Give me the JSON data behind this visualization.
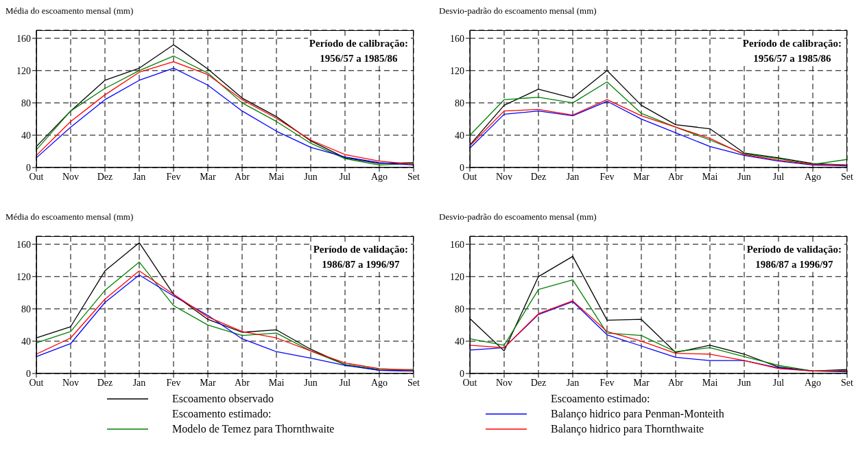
{
  "chart_data": [
    {
      "type": "line",
      "title": "Média do escoamento mensal (mm)",
      "categories": [
        "Out",
        "Nov",
        "Dez",
        "Jan",
        "Fev",
        "Mar",
        "Abr",
        "Mai",
        "Jun",
        "Jul",
        "Ago",
        "Set"
      ],
      "ylim": [
        0,
        170
      ],
      "yticks": [
        0,
        40,
        80,
        120,
        160
      ],
      "grid": true,
      "annotations": [
        "Período de calibração:\n1956/57 a 1985/86"
      ],
      "legend": "bottom",
      "legend_title": "Escoamento estimado:",
      "series": [
        {
          "name": "Escoamento observado",
          "color": "#000000",
          "values": [
            26,
            70,
            108,
            123,
            152,
            122,
            86,
            63,
            33,
            12,
            5,
            6
          ]
        },
        {
          "name": "Modelo de Temez para Thornthwaite",
          "color": "#008000",
          "values": [
            22,
            70,
            98,
            120,
            138,
            117,
            80,
            57,
            30,
            11,
            3,
            5
          ]
        },
        {
          "name": "Balanço hidrico para Penman-Monteith",
          "color": "#0000ff",
          "values": [
            12,
            50,
            84,
            108,
            123,
            102,
            70,
            45,
            25,
            13,
            6,
            3
          ]
        },
        {
          "name": "Balanço hidrico para Thornthwaite",
          "color": "#ff0000",
          "values": [
            15,
            57,
            90,
            118,
            131,
            115,
            84,
            61,
            34,
            16,
            8,
            4
          ]
        }
      ]
    },
    {
      "type": "line",
      "title": "Desvio-padrão do escoamento mensal (mm)",
      "categories": [
        "Out",
        "Nov",
        "Dez",
        "Jan",
        "Fev",
        "Mar",
        "Abr",
        "Mai",
        "Jun",
        "Jul",
        "Ago",
        "Set"
      ],
      "ylim": [
        0,
        170
      ],
      "yticks": [
        0,
        40,
        80,
        120,
        160
      ],
      "grid": true,
      "annotations": [
        "Período de calibração:\n1956/57 a 1985/86"
      ],
      "series": [
        {
          "color": "#000000",
          "values": [
            28,
            77,
            97,
            86,
            120,
            77,
            53,
            48,
            18,
            12,
            5,
            3
          ]
        },
        {
          "color": "#008000",
          "values": [
            40,
            84,
            87,
            80,
            106,
            67,
            50,
            34,
            17,
            11,
            4,
            10
          ]
        },
        {
          "color": "#0000ff",
          "values": [
            24,
            66,
            70,
            64,
            82,
            60,
            43,
            26,
            15,
            8,
            3,
            2
          ]
        },
        {
          "color": "#ff0000",
          "values": [
            27,
            70,
            72,
            65,
            84,
            64,
            50,
            36,
            16,
            9,
            4,
            3
          ]
        }
      ]
    },
    {
      "type": "line",
      "title": "Média do escoamento mensal (mm)",
      "categories": [
        "Out",
        "Nov",
        "Dez",
        "Jan",
        "Fev",
        "Mar",
        "Abr",
        "Mai",
        "Jun",
        "Jul",
        "Ago",
        "Set"
      ],
      "ylim": [
        0,
        170
      ],
      "yticks": [
        0,
        40,
        80,
        120,
        160
      ],
      "grid": true,
      "annotations": [
        "Período de validação:\n1986/87 a 1996/97"
      ],
      "series": [
        {
          "color": "#000000",
          "values": [
            44,
            58,
            127,
            162,
            98,
            67,
            51,
            54,
            30,
            11,
            4,
            3
          ]
        },
        {
          "color": "#008000",
          "values": [
            38,
            52,
            103,
            138,
            84,
            60,
            47,
            50,
            28,
            11,
            5,
            5
          ]
        },
        {
          "color": "#0000ff",
          "values": [
            21,
            37,
            88,
            122,
            96,
            72,
            43,
            27,
            19,
            10,
            4,
            3
          ]
        },
        {
          "color": "#ff0000",
          "values": [
            24,
            44,
            92,
            127,
            98,
            70,
            52,
            44,
            28,
            13,
            6,
            4
          ]
        }
      ]
    },
    {
      "type": "line",
      "title": "Desvio-padrão do escoamento mensal (mm)",
      "categories": [
        "Out",
        "Nov",
        "Dez",
        "Jan",
        "Fev",
        "Mar",
        "Abr",
        "Mai",
        "Jun",
        "Jul",
        "Ago",
        "Set"
      ],
      "ylim": [
        0,
        170
      ],
      "yticks": [
        0,
        40,
        80,
        120,
        160
      ],
      "grid": true,
      "annotations": [
        "Período de validação:\n1986/87 a 1996/97"
      ],
      "series": [
        {
          "color": "#000000",
          "values": [
            68,
            28,
            120,
            145,
            66,
            67,
            26,
            35,
            24,
            8,
            3,
            5
          ]
        },
        {
          "color": "#008000",
          "values": [
            43,
            35,
            104,
            116,
            50,
            47,
            27,
            32,
            21,
            10,
            3,
            4
          ]
        },
        {
          "color": "#0000ff",
          "values": [
            29,
            32,
            73,
            89,
            48,
            34,
            20,
            16,
            16,
            7,
            3,
            2
          ]
        },
        {
          "color": "#ff0000",
          "values": [
            35,
            32,
            74,
            90,
            52,
            40,
            25,
            24,
            16,
            6,
            3,
            3
          ]
        }
      ]
    }
  ]
}
